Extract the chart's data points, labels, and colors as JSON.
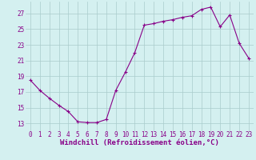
{
  "hours": [
    0,
    1,
    2,
    3,
    4,
    5,
    6,
    7,
    8,
    9,
    10,
    11,
    12,
    13,
    14,
    15,
    16,
    17,
    18,
    19,
    20,
    21,
    22,
    23
  ],
  "values": [
    18.5,
    17.2,
    16.2,
    15.3,
    14.5,
    13.2,
    13.1,
    13.1,
    13.5,
    17.2,
    19.5,
    22.0,
    25.5,
    25.7,
    26.0,
    26.2,
    26.5,
    26.7,
    27.5,
    27.8,
    25.3,
    26.8,
    23.2,
    21.3
  ],
  "line_color": "#880088",
  "bg_color": "#d4f0f0",
  "grid_color": "#aacccc",
  "xlabel": "Windchill (Refroidissement éolien,°C)",
  "xlabel_fontsize": 6.5,
  "tick_fontsize": 5.5,
  "yticks": [
    13,
    15,
    17,
    19,
    21,
    23,
    25,
    27
  ],
  "ylim": [
    12.0,
    28.5
  ],
  "xlim": [
    -0.5,
    23.5
  ],
  "marker": "+",
  "markersize": 3,
  "linewidth": 0.8
}
